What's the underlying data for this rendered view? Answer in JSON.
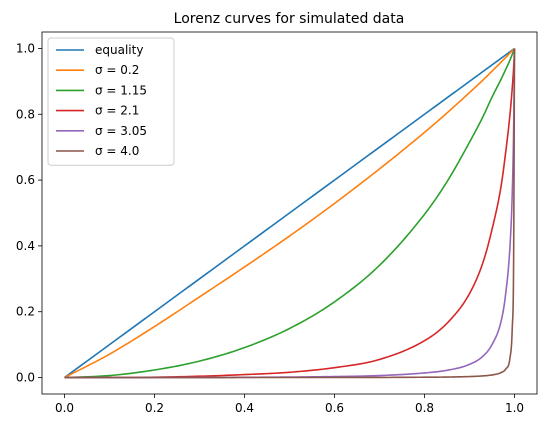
{
  "chart_data": {
    "type": "line",
    "title": "Lorenz curves for simulated data",
    "xlabel": "",
    "ylabel": "",
    "xlim": [
      -0.05,
      1.05
    ],
    "ylim": [
      -0.05,
      1.05
    ],
    "xticks": [
      0.0,
      0.2,
      0.4,
      0.6,
      0.8,
      1.0
    ],
    "xtick_labels": [
      "0.0",
      "0.2",
      "0.4",
      "0.6",
      "0.8",
      "1.0"
    ],
    "yticks": [
      0.0,
      0.2,
      0.4,
      0.6,
      0.8,
      1.0
    ],
    "ytick_labels": [
      "0.0",
      "0.2",
      "0.4",
      "0.6",
      "0.8",
      "1.0"
    ],
    "grid": false,
    "legend_position": "top-left",
    "x": [
      0.0,
      0.1,
      0.2,
      0.3,
      0.4,
      0.5,
      0.6,
      0.7,
      0.8,
      0.85,
      0.9,
      0.93,
      0.95,
      0.97,
      0.98,
      0.99,
      0.995,
      0.998,
      1.0
    ],
    "series": [
      {
        "name": "equality",
        "color": "#1f77b4",
        "values": [
          0.0,
          0.1,
          0.2,
          0.3,
          0.4,
          0.5,
          0.6,
          0.7,
          0.8,
          0.85,
          0.9,
          0.93,
          0.95,
          0.97,
          0.98,
          0.99,
          0.995,
          0.998,
          1.0
        ]
      },
      {
        "name": "σ = 0.2",
        "color": "#ff7f0e",
        "values": [
          0.0,
          0.071,
          0.155,
          0.245,
          0.336,
          0.43,
          0.529,
          0.634,
          0.745,
          0.804,
          0.866,
          0.904,
          0.931,
          0.958,
          0.972,
          0.986,
          0.993,
          0.997,
          1.0
        ]
      },
      {
        "name": "σ = 1.15",
        "color": "#2ca02c",
        "values": [
          0.0,
          0.006,
          0.023,
          0.05,
          0.091,
          0.149,
          0.23,
          0.341,
          0.496,
          0.595,
          0.715,
          0.793,
          0.852,
          0.906,
          0.935,
          0.965,
          0.982,
          0.992,
          1.0
        ]
      },
      {
        "name": "σ = 2.1",
        "color": "#d62728",
        "values": [
          0.0,
          0.0002,
          0.001,
          0.004,
          0.009,
          0.016,
          0.03,
          0.055,
          0.112,
          0.165,
          0.255,
          0.35,
          0.45,
          0.58,
          0.68,
          0.8,
          0.88,
          0.94,
          1.0
        ]
      },
      {
        "name": "σ = 3.05",
        "color": "#9467bd",
        "values": [
          0.0,
          0.0,
          0.0001,
          0.0003,
          0.0007,
          0.0015,
          0.003,
          0.006,
          0.014,
          0.022,
          0.04,
          0.065,
          0.1,
          0.17,
          0.25,
          0.4,
          0.56,
          0.75,
          1.0
        ]
      },
      {
        "name": "σ = 4.0",
        "color": "#8c564b",
        "values": [
          0.0,
          0.0,
          0.0,
          0.0,
          0.0001,
          0.0001,
          0.0002,
          0.0004,
          0.001,
          0.0015,
          0.003,
          0.005,
          0.008,
          0.015,
          0.025,
          0.06,
          0.15,
          0.35,
          1.0
        ]
      }
    ]
  }
}
